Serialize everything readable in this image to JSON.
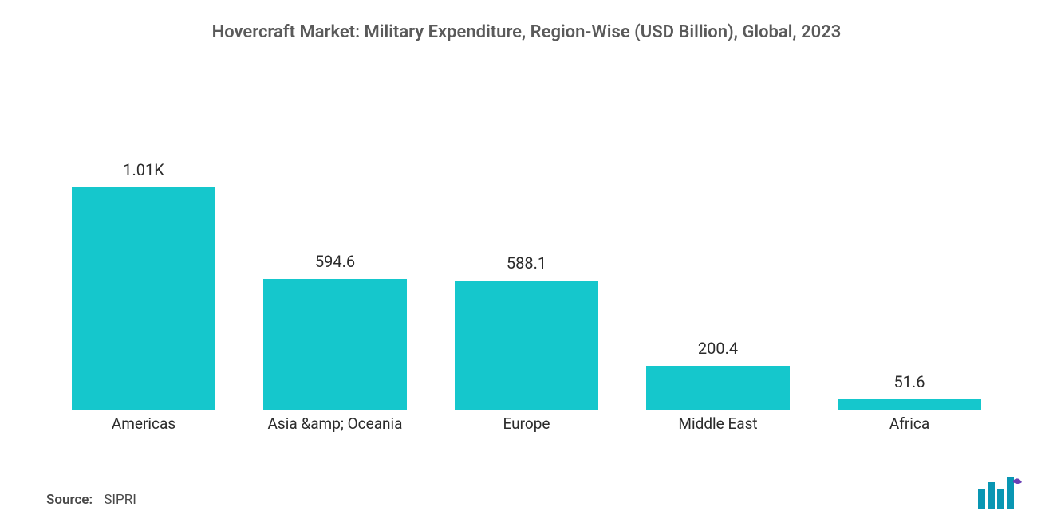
{
  "chart": {
    "type": "bar",
    "title": "Hovercraft Market: Military Expenditure, Region-Wise (USD Billion), Global, 2023",
    "title_fontsize": 22,
    "title_color": "#5a5a5a",
    "categories": [
      "Americas",
      "Asia &amp; Oceania",
      "Europe",
      "Middle East",
      "Africa"
    ],
    "values": [
      1010,
      594.6,
      588.1,
      200.4,
      51.6
    ],
    "value_labels": [
      "1.01K",
      "594.6",
      "588.1",
      "200.4",
      "51.6"
    ],
    "bar_colors": [
      "#15c7cc",
      "#15c7cc",
      "#15c7cc",
      "#15c7cc",
      "#15c7cc"
    ],
    "value_label_color": "#2b2b2b",
    "value_label_fontsize": 20,
    "category_label_color": "#2b2b2b",
    "category_label_fontsize": 19,
    "background_color": "#ffffff",
    "ylim": [
      0,
      1010
    ],
    "bar_max_width": 180,
    "plot_area_height": 280
  },
  "source": {
    "label": "Source:",
    "text": "SIPRI",
    "fontsize": 17,
    "color": "#4a4a4a"
  },
  "logo": {
    "name": "mordor-intelligence-logo",
    "bar_color": "#0996b3",
    "accent_color": "#6a3fb5"
  }
}
